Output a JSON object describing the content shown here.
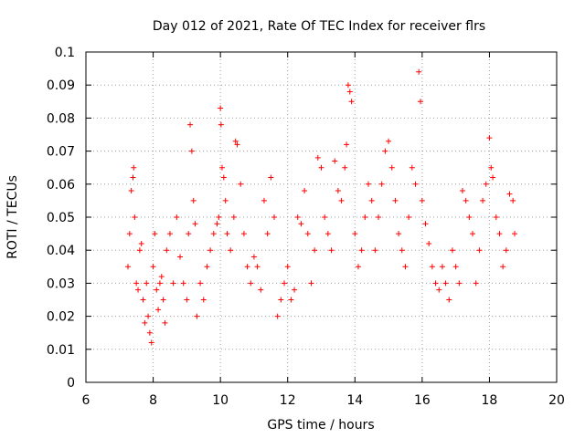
{
  "chart_data": {
    "type": "scatter",
    "title": "Day 012 of 2021, Rate Of TEC Index for receiver flrs",
    "xlabel": "GPS time / hours",
    "ylabel": "ROTI / TECUs",
    "xlim": [
      6,
      20
    ],
    "ylim": [
      0,
      0.1
    ],
    "xticks": [
      6,
      8,
      10,
      12,
      14,
      16,
      18,
      20
    ],
    "yticks": [
      0,
      0.01,
      0.02,
      0.03,
      0.04,
      0.05,
      0.06,
      0.07,
      0.08,
      0.09,
      0.1
    ],
    "ytick_labels": [
      "0",
      "0.01",
      "0.02",
      "0.03",
      "0.04",
      "0.05",
      "0.06",
      "0.07",
      "0.08",
      "0.09",
      "0.1"
    ],
    "grid": true,
    "marker": "plus",
    "color": "#ff0000",
    "series": [
      {
        "x": [
          7.25,
          7.3,
          7.35,
          7.4,
          7.42,
          7.45,
          7.5,
          7.55,
          7.6,
          7.65,
          7.7,
          7.75,
          7.8,
          7.85,
          7.9,
          7.95,
          8.0,
          8.05,
          8.1,
          8.15,
          8.2,
          8.25,
          8.3,
          8.35,
          8.4,
          8.5,
          8.6,
          8.7,
          8.8,
          8.9,
          9.0,
          9.05,
          9.1,
          9.15,
          9.2,
          9.25,
          9.3,
          9.4,
          9.5,
          9.6,
          9.7,
          9.8,
          9.9,
          9.95,
          10.0,
          10.02,
          10.05,
          10.1,
          10.15,
          10.2,
          10.3,
          10.4,
          10.45,
          10.5,
          10.6,
          10.7,
          10.8,
          10.9,
          11.0,
          11.1,
          11.2,
          11.3,
          11.4,
          11.5,
          11.6,
          11.7,
          11.8,
          11.9,
          12.0,
          12.1,
          12.2,
          12.3,
          12.4,
          12.5,
          12.6,
          12.7,
          12.8,
          12.9,
          13.0,
          13.1,
          13.2,
          13.3,
          13.4,
          13.5,
          13.6,
          13.7,
          13.75,
          13.8,
          13.85,
          13.9,
          14.0,
          14.1,
          14.2,
          14.3,
          14.4,
          14.5,
          14.6,
          14.7,
          14.8,
          14.9,
          15.0,
          15.1,
          15.2,
          15.3,
          15.4,
          15.5,
          15.6,
          15.7,
          15.8,
          15.9,
          15.95,
          16.0,
          16.1,
          16.2,
          16.3,
          16.4,
          16.5,
          16.6,
          16.7,
          16.8,
          16.9,
          17.0,
          17.1,
          17.2,
          17.3,
          17.4,
          17.5,
          17.6,
          17.7,
          17.8,
          17.9,
          18.0,
          18.05,
          18.1,
          18.2,
          18.3,
          18.4,
          18.5,
          18.6,
          18.7,
          18.75
        ],
        "y": [
          0.035,
          0.045,
          0.058,
          0.062,
          0.065,
          0.05,
          0.03,
          0.028,
          0.04,
          0.042,
          0.025,
          0.018,
          0.03,
          0.02,
          0.015,
          0.012,
          0.035,
          0.045,
          0.028,
          0.022,
          0.03,
          0.032,
          0.025,
          0.018,
          0.04,
          0.045,
          0.03,
          0.05,
          0.038,
          0.03,
          0.025,
          0.045,
          0.078,
          0.07,
          0.055,
          0.048,
          0.02,
          0.03,
          0.025,
          0.035,
          0.04,
          0.045,
          0.048,
          0.05,
          0.083,
          0.078,
          0.065,
          0.062,
          0.055,
          0.045,
          0.04,
          0.05,
          0.073,
          0.072,
          0.06,
          0.045,
          0.035,
          0.03,
          0.038,
          0.035,
          0.028,
          0.055,
          0.045,
          0.062,
          0.05,
          0.02,
          0.025,
          0.03,
          0.035,
          0.025,
          0.028,
          0.05,
          0.048,
          0.058,
          0.045,
          0.03,
          0.04,
          0.068,
          0.065,
          0.05,
          0.045,
          0.04,
          0.067,
          0.058,
          0.055,
          0.065,
          0.072,
          0.09,
          0.088,
          0.085,
          0.045,
          0.035,
          0.04,
          0.05,
          0.06,
          0.055,
          0.04,
          0.05,
          0.06,
          0.07,
          0.073,
          0.065,
          0.055,
          0.045,
          0.04,
          0.035,
          0.05,
          0.065,
          0.06,
          0.094,
          0.085,
          0.055,
          0.048,
          0.042,
          0.035,
          0.03,
          0.028,
          0.035,
          0.03,
          0.025,
          0.04,
          0.035,
          0.03,
          0.058,
          0.055,
          0.05,
          0.045,
          0.03,
          0.04,
          0.055,
          0.06,
          0.074,
          0.065,
          0.062,
          0.05,
          0.045,
          0.035,
          0.04,
          0.057,
          0.055,
          0.045
        ]
      }
    ]
  }
}
